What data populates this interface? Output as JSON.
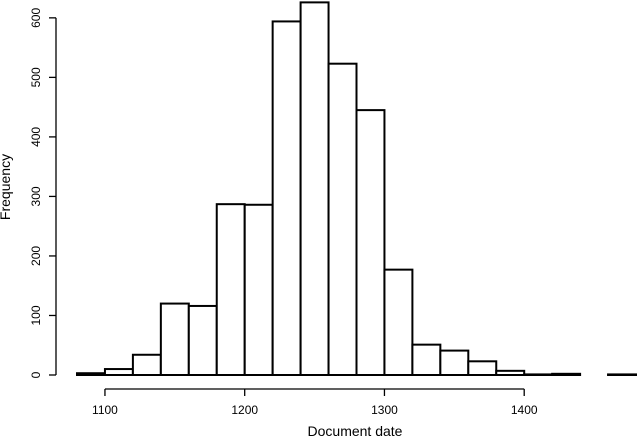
{
  "chart_data": {
    "type": "bar",
    "title": "",
    "xlabel": "Document date",
    "ylabel": "Frequency",
    "bin_width": 20,
    "bins": [
      {
        "start": 1080,
        "end": 1100,
        "count": 3
      },
      {
        "start": 1100,
        "end": 1120,
        "count": 10
      },
      {
        "start": 1120,
        "end": 1140,
        "count": 34
      },
      {
        "start": 1140,
        "end": 1160,
        "count": 120
      },
      {
        "start": 1160,
        "end": 1180,
        "count": 116
      },
      {
        "start": 1180,
        "end": 1200,
        "count": 287
      },
      {
        "start": 1200,
        "end": 1220,
        "count": 286
      },
      {
        "start": 1220,
        "end": 1240,
        "count": 594
      },
      {
        "start": 1240,
        "end": 1260,
        "count": 626
      },
      {
        "start": 1260,
        "end": 1280,
        "count": 523
      },
      {
        "start": 1280,
        "end": 1300,
        "count": 445
      },
      {
        "start": 1300,
        "end": 1320,
        "count": 177
      },
      {
        "start": 1320,
        "end": 1340,
        "count": 51
      },
      {
        "start": 1340,
        "end": 1360,
        "count": 41
      },
      {
        "start": 1360,
        "end": 1380,
        "count": 23
      },
      {
        "start": 1380,
        "end": 1400,
        "count": 7
      },
      {
        "start": 1400,
        "end": 1420,
        "count": 1
      },
      {
        "start": 1420,
        "end": 1440,
        "count": 2
      },
      {
        "start": 1440,
        "end": 1460,
        "count": 0
      },
      {
        "start": 1460,
        "end": 1480,
        "count": 1
      }
    ],
    "xlim": [
      1080,
      1480
    ],
    "ylim": [
      0,
      630
    ],
    "xticks": [
      1100,
      1200,
      1300,
      1400
    ],
    "yticks": [
      0,
      100,
      200,
      300,
      400,
      500,
      600
    ],
    "grid": false,
    "legend": "none"
  }
}
